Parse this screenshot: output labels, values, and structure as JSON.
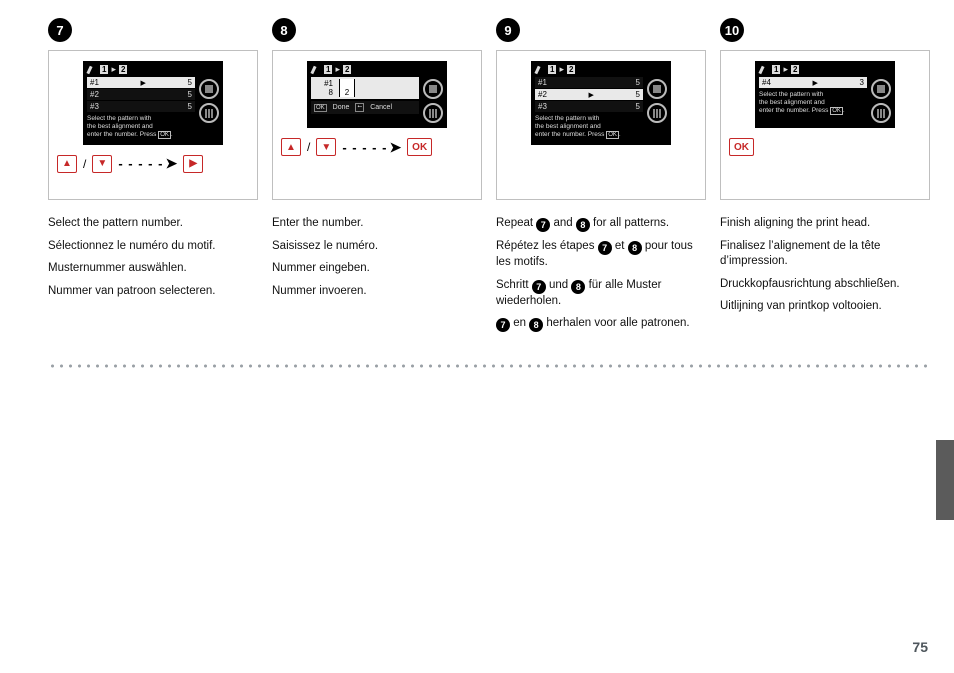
{
  "page_number": "75",
  "colors": {
    "panel_border": "#bfbfbf",
    "keycap_border": "#c62828",
    "dot": "#9aa0a6",
    "side_tab": "#5b5b5b",
    "text": "#111111",
    "lcd_bg": "#000000",
    "lcd_fg": "#e9e9e9"
  },
  "lcd_common": {
    "header_chip1": "1",
    "header_chip2": "2",
    "hint_line1": "Select the pattern with",
    "hint_line2": "the best alignment and",
    "hint_line3_prefix": "enter the number. Press",
    "hint_ok": "OK"
  },
  "steps": [
    {
      "num": "7",
      "lcd": {
        "type": "list",
        "rows": [
          {
            "label": "#1",
            "value": "5",
            "selected": true
          },
          {
            "label": "#2",
            "value": "5",
            "selected": false
          },
          {
            "label": "#3",
            "value": "5",
            "selected": false
          }
        ]
      },
      "nav": {
        "keys_updown": true,
        "arrow": true,
        "final": "right"
      },
      "texts": [
        "Select the pattern number.",
        "Sélectionnez le numéro du motif.",
        "Musternummer auswählen.",
        "Nummer van patroon selecteren."
      ]
    },
    {
      "num": "8",
      "lcd": {
        "type": "entry",
        "rows": [
          {
            "label": "#1",
            "value": ""
          },
          {
            "label": "8",
            "value": "2"
          }
        ],
        "done_label": "Done",
        "cancel_label": "Cancel",
        "done_chip": "OK",
        "cancel_chip": "⭠"
      },
      "nav": {
        "keys_updown": true,
        "arrow": true,
        "final": "ok",
        "ok_label": "OK"
      },
      "texts": [
        "Enter the number.",
        "Saisissez le numéro.",
        "Nummer eingeben.",
        "Nummer invoeren."
      ]
    },
    {
      "num": "9",
      "lcd": {
        "type": "list",
        "rows": [
          {
            "label": "#1",
            "value": "5",
            "selected": false
          },
          {
            "label": "#2",
            "value": "5",
            "selected": true
          },
          {
            "label": "#3",
            "value": "5",
            "selected": false
          }
        ]
      },
      "nav": null,
      "texts_rich": [
        [
          {
            "t": "Repeat "
          },
          {
            "b": "7"
          },
          {
            "t": " and "
          },
          {
            "b": "8"
          },
          {
            "t": " for all patterns."
          }
        ],
        [
          {
            "t": "Répétez les étapes "
          },
          {
            "b": "7"
          },
          {
            "t": " et "
          },
          {
            "b": "8"
          },
          {
            "t": " pour tous les motifs."
          }
        ],
        [
          {
            "t": "Schritt "
          },
          {
            "b": "7"
          },
          {
            "t": " und "
          },
          {
            "b": "8"
          },
          {
            "t": " für alle Muster wiederholen."
          }
        ],
        [
          {
            "b": "7"
          },
          {
            "t": " en "
          },
          {
            "b": "8"
          },
          {
            "t": " herhalen voor alle patronen."
          }
        ]
      ]
    },
    {
      "num": "10",
      "lcd": {
        "type": "list",
        "rows": [
          {
            "label": "#4",
            "value": "3",
            "selected": true
          }
        ]
      },
      "nav": {
        "only_ok": true,
        "ok_label": "OK"
      },
      "texts": [
        "Finish aligning the print head.",
        "Finalisez l’alignement de la tête d’impression.",
        "Druckkopfausrichtung abschließen.",
        "Uitlijning van printkop voltooien."
      ]
    }
  ]
}
